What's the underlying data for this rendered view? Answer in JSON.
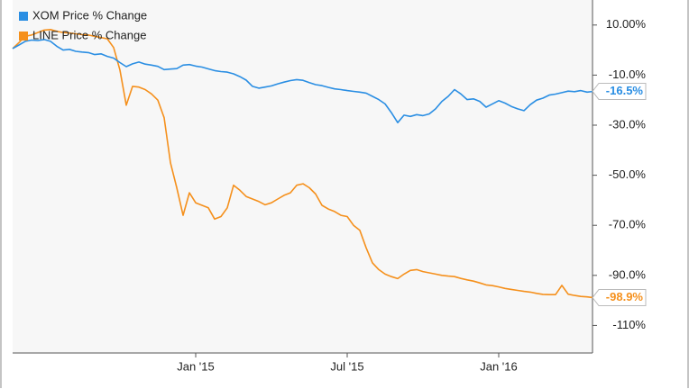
{
  "chart_data": {
    "type": "line",
    "categories": [
      null,
      null,
      null,
      null,
      null,
      null,
      null,
      null,
      null,
      null,
      null,
      null,
      null,
      null,
      null,
      null,
      null,
      null,
      null,
      null,
      null,
      null,
      null,
      null,
      null,
      null,
      null,
      null,
      null,
      "Jan '15",
      null,
      null,
      null,
      null,
      null,
      null,
      null,
      null,
      null,
      null,
      null,
      null,
      null,
      null,
      null,
      null,
      null,
      null,
      null,
      null,
      null,
      null,
      null,
      "Jul '15",
      null,
      null,
      null,
      null,
      null,
      null,
      null,
      null,
      null,
      null,
      null,
      null,
      null,
      null,
      null,
      null,
      null,
      null,
      null,
      null,
      null,
      null,
      null,
      "Jan '16",
      null,
      null,
      null,
      null,
      null,
      null,
      null,
      null,
      null,
      null,
      null,
      null,
      null,
      null,
      null
    ],
    "series": [
      {
        "name": "XOM Price % Change",
        "color": "#2a8ee3",
        "last_label": "-16.5%",
        "values": [
          0.6,
          2,
          3.5,
          4,
          3.8,
          4.2,
          3.5,
          1.5,
          0,
          0.3,
          -0.5,
          -0.8,
          -1,
          -1.8,
          -1.5,
          -2.5,
          -3.2,
          -5,
          -6.6,
          -5.5,
          -4.8,
          -5.6,
          -6,
          -6.5,
          -7.8,
          -7.6,
          -7.4,
          -6,
          -5.8,
          -6.4,
          -6.8,
          -7.5,
          -8.2,
          -8.6,
          -8.8,
          -9.5,
          -10.6,
          -12,
          -14.5,
          -15.2,
          -14.8,
          -14.3,
          -13.5,
          -12.8,
          -12.2,
          -11.8,
          -12.1,
          -13,
          -13.8,
          -14.2,
          -14.9,
          -15.5,
          -15.8,
          -16.2,
          -16.5,
          -16.8,
          -17.2,
          -18.5,
          -19.8,
          -21.5,
          -25,
          -29,
          -26,
          -26.5,
          -25.8,
          -26.2,
          -25.5,
          -23.5,
          -20.5,
          -18.5,
          -15.8,
          -17.5,
          -19.8,
          -19.5,
          -20.5,
          -22.8,
          -21.5,
          -20.2,
          -21.2,
          -22.5,
          -23.5,
          -24.2,
          -21.8,
          -20,
          -19.2,
          -18,
          -17.6,
          -17,
          -16.4,
          -16.6,
          -16.2,
          -16.8,
          -16.5
        ]
      },
      {
        "name": "LINE Price % Change",
        "color": "#f5901c",
        "last_label": "-98.9%",
        "values": [
          0.6,
          3,
          5.5,
          6,
          7,
          8,
          8.2,
          7.5,
          7,
          6.8,
          6.5,
          6.2,
          6,
          5.5,
          5,
          4.5,
          1,
          -8,
          -22,
          -14.5,
          -14.8,
          -15.8,
          -17.5,
          -20,
          -27,
          -45,
          -55,
          -66,
          -57,
          -61,
          -62,
          -63,
          -67.5,
          -66.5,
          -63,
          -54,
          -56,
          -58.5,
          -59.5,
          -60.5,
          -61.8,
          -61,
          -59.5,
          -58,
          -57,
          -54,
          -53.4,
          -55,
          -57.5,
          -62,
          -63.5,
          -64.5,
          -66,
          -66.5,
          -70,
          -72,
          -79,
          -85,
          -87.7,
          -89.5,
          -90.5,
          -91.3,
          -89.5,
          -88,
          -87.7,
          -88.5,
          -89,
          -89.5,
          -90,
          -90.3,
          -90.5,
          -91.2,
          -91.8,
          -92.3,
          -93,
          -93.8,
          -94.1,
          -94.6,
          -95.2,
          -95.6,
          -96,
          -96.4,
          -96.7,
          -97.2,
          -97.6,
          -97.7,
          -97.7,
          -94,
          -97.5,
          -98,
          -98.4,
          -98.6,
          -98.9
        ]
      }
    ],
    "ylim": [
      -121,
      20
    ],
    "yticks": [
      {
        "value": 10,
        "label": "10.00%"
      },
      {
        "value": -10,
        "label": "-10.0%"
      },
      {
        "value": -30,
        "label": "-30.0%"
      },
      {
        "value": -50,
        "label": "-50.0%"
      },
      {
        "value": -70,
        "label": "-70.0%"
      },
      {
        "value": -90,
        "label": "-90.0%"
      },
      {
        "value": -110,
        "label": "-110%"
      }
    ],
    "grid": false,
    "legend": "top-left"
  }
}
